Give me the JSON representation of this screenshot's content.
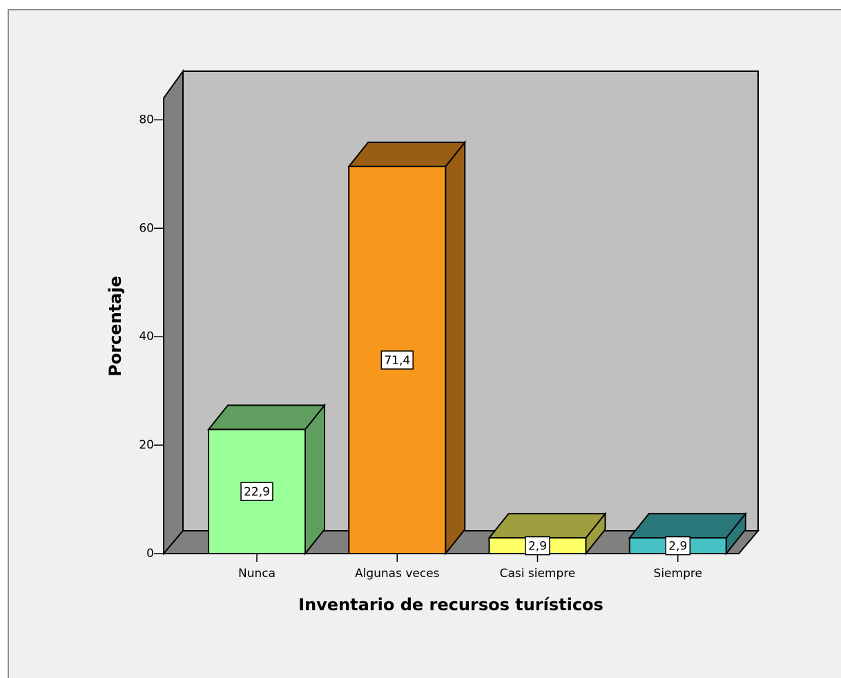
{
  "chart_data": {
    "type": "bar3d",
    "x_label": "Inventario de recursos turísticos",
    "y_label": "Porcentaje",
    "categories": [
      "Nunca",
      "Algunas veces",
      "Casi siempre",
      "Siempre"
    ],
    "values": [
      22.9,
      71.4,
      2.9,
      2.9
    ],
    "value_labels": [
      "22,9",
      "71,4",
      "2,9",
      "2,9"
    ],
    "colors": [
      "#99ff99",
      "#f7971e",
      "#ffff66",
      "#46c1c4"
    ],
    "ylim": [
      0,
      84
    ],
    "yticks": [
      0,
      20,
      40,
      60,
      80
    ]
  }
}
